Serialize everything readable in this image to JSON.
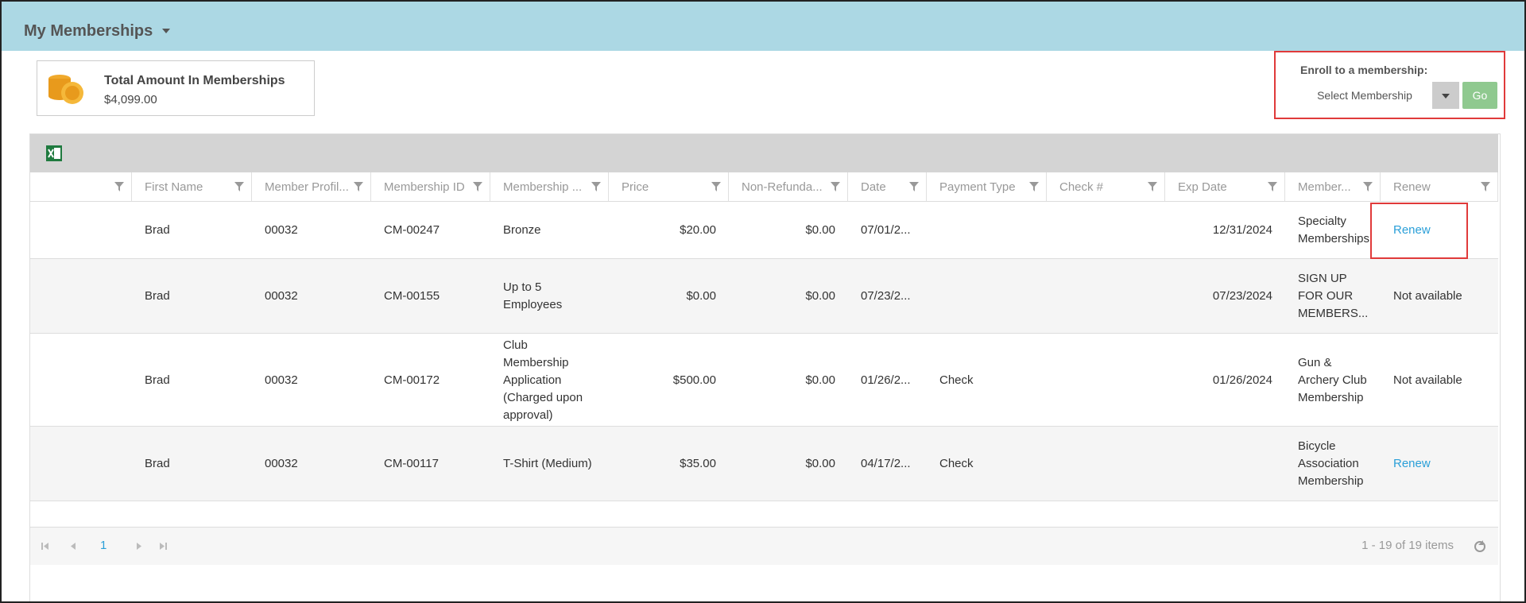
{
  "header": {
    "title": "My Memberships"
  },
  "summary": {
    "label": "Total Amount In Memberships",
    "amount": "$4,099.00"
  },
  "enroll": {
    "label": "Enroll to a membership:",
    "placeholder": "Select Membership",
    "button": "Go"
  },
  "table": {
    "columns": [
      "First Name",
      "Member Profil...",
      "Membership ID",
      "Membership ...",
      "Price",
      "Non-Refunda...",
      "Date",
      "Payment Type",
      "Check #",
      "Exp Date",
      "Member...",
      "Renew"
    ],
    "rows": [
      {
        "first": "Brad",
        "profile": "00032",
        "id": "CM-00247",
        "type": "Bronze",
        "price": "$20.00",
        "nonref": "$0.00",
        "date": "07/01/2...",
        "exp": "12/31/2024",
        "member": "Specialty Memberships",
        "renew": "Renew"
      },
      {
        "first": "Brad",
        "profile": "00032",
        "id": "CM-00155",
        "type": "Up to 5 Employees",
        "price": "$0.00",
        "nonref": "$0.00",
        "date": "07/23/2...",
        "exp": "07/23/2024",
        "member": "SIGN UP FOR OUR MEMBERS...",
        "renew": "Not available"
      },
      {
        "first": "Brad",
        "profile": "00032",
        "id": "CM-00172",
        "type": "Club Membership Application (Charged upon approval)",
        "price": "$500.00",
        "nonref": "$0.00",
        "date": "01/26/2...",
        "payment": "Check",
        "exp": "01/26/2024",
        "member": "Gun & Archery Club Membership",
        "renew": "Not available"
      },
      {
        "first": "Brad",
        "profile": "00032",
        "id": "CM-00117",
        "type": "T-Shirt (Medium)",
        "price": "$35.00",
        "nonref": "$0.00",
        "date": "04/17/2...",
        "payment": "Check",
        "member": "Bicycle Association Membership",
        "renew": "Renew"
      }
    ]
  },
  "pager": {
    "page": "1",
    "info": "1 - 19 of 19 items"
  }
}
